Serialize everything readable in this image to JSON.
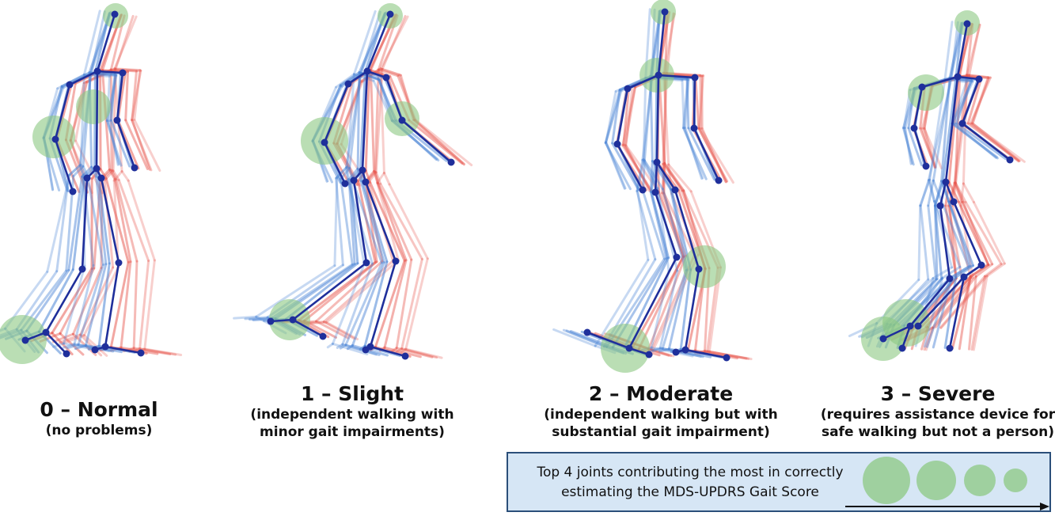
{
  "figure": {
    "panels": [
      {
        "id": "normal",
        "title": "0 – Normal",
        "subtitle_lines": [
          "(no problems)"
        ]
      },
      {
        "id": "slight",
        "title": "1 – Slight",
        "subtitle_lines": [
          "(independent walking with",
          "minor gait impairments)"
        ]
      },
      {
        "id": "moderate",
        "title": "2 – Moderate",
        "subtitle_lines": [
          "(independent walking but with",
          "substantial gait impairment)"
        ]
      },
      {
        "id": "severe",
        "title": "3 – Severe",
        "subtitle_lines": [
          "(requires assistance device for",
          "safe walking but not a person)"
        ]
      }
    ],
    "legend": {
      "line1": "Top 4 joints contributing the most in correctly",
      "line2": "estimating the MDS-UPDRS Gait Score",
      "circle_rank_count": 4
    },
    "colors": {
      "skeleton_dark": "#1f2f9b",
      "skeleton_blue_trail": "#4a84d6",
      "skeleton_red": "#e8574e",
      "highlight_green": "#8cc882",
      "legend_bg": "#d6e6f5",
      "legend_border": "#2b4f7a"
    }
  }
}
